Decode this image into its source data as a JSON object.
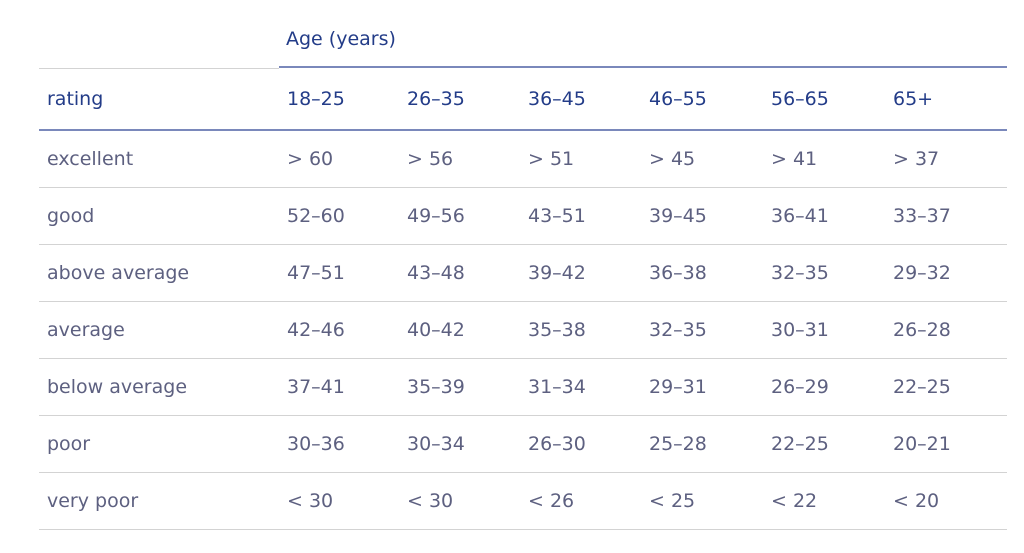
{
  "table": {
    "group_label": "Age (years)",
    "headers": [
      "rating",
      "18–25",
      "26–35",
      "36–45",
      "46–55",
      "56–65",
      "65+"
    ],
    "rows": [
      [
        "excellent",
        "> 60",
        "> 56",
        "> 51",
        "> 45",
        "> 41",
        "> 37"
      ],
      [
        "good",
        "52–60",
        "49–56",
        "43–51",
        "39–45",
        "36–41",
        "33–37"
      ],
      [
        "above average",
        "47–51",
        "43–48",
        "39–42",
        "36–38",
        "32–35",
        "29–32"
      ],
      [
        "average",
        "42–46",
        "40–42",
        "35–38",
        "32–35",
        "30–31",
        "26–28"
      ],
      [
        "below average",
        "37–41",
        "35–39",
        "31–34",
        "29–31",
        "26–29",
        "22–25"
      ],
      [
        "poor",
        "30–36",
        "30–34",
        "26–30",
        "25–28",
        "22–25",
        "20–21"
      ],
      [
        "very poor",
        "< 30",
        "< 30",
        "< 26",
        "< 25",
        "< 22",
        "< 20"
      ]
    ]
  },
  "colors": {
    "header_text": "#233c88",
    "body_text": "#5d6080",
    "header_rule": "#7a88bb",
    "row_rule": "#d3d3d3"
  }
}
